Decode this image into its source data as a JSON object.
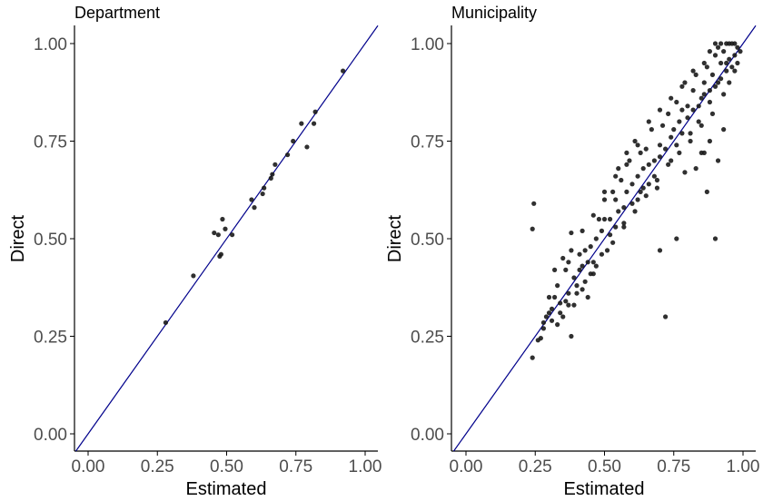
{
  "colors": {
    "point": "#1a1a1a",
    "identity_line": "#00008b",
    "axis": "#000000",
    "tick_text": "#4d4d4d"
  },
  "chart_data": [
    {
      "type": "scatter",
      "title": "Department",
      "xlabel": "Estimated",
      "ylabel": "Direct",
      "xlim": [
        0,
        1
      ],
      "ylim": [
        0,
        1
      ],
      "x_ticks": [
        "0.00",
        "0.25",
        "0.50",
        "0.75",
        "1.00"
      ],
      "y_ticks": [
        "0.00",
        "0.25",
        "0.50",
        "0.75",
        "1.00"
      ],
      "reference_line": "y = x",
      "grid": false,
      "points": [
        [
          0.28,
          0.285
        ],
        [
          0.38,
          0.405
        ],
        [
          0.455,
          0.515
        ],
        [
          0.47,
          0.51
        ],
        [
          0.475,
          0.455
        ],
        [
          0.48,
          0.46
        ],
        [
          0.485,
          0.55
        ],
        [
          0.495,
          0.525
        ],
        [
          0.52,
          0.51
        ],
        [
          0.59,
          0.6
        ],
        [
          0.6,
          0.58
        ],
        [
          0.63,
          0.615
        ],
        [
          0.635,
          0.63
        ],
        [
          0.66,
          0.655
        ],
        [
          0.665,
          0.665
        ],
        [
          0.675,
          0.69
        ],
        [
          0.72,
          0.715
        ],
        [
          0.74,
          0.75
        ],
        [
          0.77,
          0.795
        ],
        [
          0.79,
          0.735
        ],
        [
          0.815,
          0.795
        ],
        [
          0.82,
          0.825
        ],
        [
          0.92,
          0.93
        ]
      ]
    },
    {
      "type": "scatter",
      "title": "Municipality",
      "xlabel": "Estimated",
      "ylabel": "Direct",
      "xlim": [
        0,
        1
      ],
      "ylim": [
        0,
        1
      ],
      "x_ticks": [
        "0.00",
        "0.25",
        "0.50",
        "0.75",
        "1.00"
      ],
      "y_ticks": [
        "0.00",
        "0.25",
        "0.50",
        "0.75",
        "1.00"
      ],
      "reference_line": "y = x",
      "grid": false,
      "points": [
        [
          0.24,
          0.195
        ],
        [
          0.245,
          0.59
        ],
        [
          0.24,
          0.525
        ],
        [
          0.27,
          0.245
        ],
        [
          0.28,
          0.285
        ],
        [
          0.29,
          0.3
        ],
        [
          0.3,
          0.31
        ],
        [
          0.31,
          0.32
        ],
        [
          0.32,
          0.35
        ],
        [
          0.33,
          0.38
        ],
        [
          0.3,
          0.35
        ],
        [
          0.32,
          0.42
        ],
        [
          0.34,
          0.335
        ],
        [
          0.35,
          0.3
        ],
        [
          0.36,
          0.34
        ],
        [
          0.37,
          0.36
        ],
        [
          0.38,
          0.25
        ],
        [
          0.37,
          0.44
        ],
        [
          0.38,
          0.515
        ],
        [
          0.39,
          0.4
        ],
        [
          0.4,
          0.38
        ],
        [
          0.41,
          0.42
        ],
        [
          0.42,
          0.43
        ],
        [
          0.43,
          0.47
        ],
        [
          0.44,
          0.35
        ],
        [
          0.45,
          0.41
        ],
        [
          0.46,
          0.44
        ],
        [
          0.47,
          0.5
        ],
        [
          0.48,
          0.55
        ],
        [
          0.49,
          0.52
        ],
        [
          0.5,
          0.6
        ],
        [
          0.51,
          0.47
        ],
        [
          0.52,
          0.55
        ],
        [
          0.53,
          0.62
        ],
        [
          0.54,
          0.6
        ],
        [
          0.55,
          0.57
        ],
        [
          0.56,
          0.65
        ],
        [
          0.57,
          0.54
        ],
        [
          0.58,
          0.62
        ],
        [
          0.59,
          0.7
        ],
        [
          0.6,
          0.59
        ],
        [
          0.61,
          0.75
        ],
        [
          0.62,
          0.66
        ],
        [
          0.63,
          0.62
        ],
        [
          0.64,
          0.68
        ],
        [
          0.65,
          0.73
        ],
        [
          0.66,
          0.64
        ],
        [
          0.67,
          0.78
        ],
        [
          0.68,
          0.7
        ],
        [
          0.69,
          0.65
        ],
        [
          0.7,
          0.74
        ],
        [
          0.71,
          0.79
        ],
        [
          0.72,
          0.3
        ],
        [
          0.73,
          0.82
        ],
        [
          0.74,
          0.7
        ],
        [
          0.75,
          0.78
        ],
        [
          0.76,
          0.85
        ],
        [
          0.77,
          0.8
        ],
        [
          0.78,
          0.83
        ],
        [
          0.79,
          0.9
        ],
        [
          0.8,
          0.84
        ],
        [
          0.81,
          0.75
        ],
        [
          0.82,
          0.88
        ],
        [
          0.83,
          0.92
        ],
        [
          0.84,
          0.8
        ],
        [
          0.85,
          0.86
        ],
        [
          0.86,
          0.9
        ],
        [
          0.87,
          0.94
        ],
        [
          0.88,
          0.88
        ],
        [
          0.89,
          0.92
        ],
        [
          0.9,
          0.97
        ],
        [
          0.91,
          0.9
        ],
        [
          0.92,
          0.95
        ],
        [
          0.93,
          0.98
        ],
        [
          0.94,
          0.93
        ],
        [
          0.95,
          0.96
        ],
        [
          0.96,
          1.0
        ],
        [
          0.97,
          0.97
        ],
        [
          0.98,
          0.99
        ],
        [
          0.9,
          1.0
        ],
        [
          0.92,
          1.0
        ],
        [
          0.95,
          1.0
        ],
        [
          0.85,
          0.72
        ],
        [
          0.88,
          0.75
        ],
        [
          0.91,
          0.7
        ],
        [
          0.93,
          0.78
        ],
        [
          0.87,
          0.62
        ],
        [
          0.9,
          0.5
        ],
        [
          0.76,
          0.5
        ],
        [
          0.7,
          0.47
        ],
        [
          0.79,
          0.67
        ],
        [
          0.83,
          0.68
        ],
        [
          0.86,
          0.72
        ],
        [
          0.63,
          0.72
        ],
        [
          0.55,
          0.68
        ],
        [
          0.58,
          0.72
        ],
        [
          0.5,
          0.55
        ],
        [
          0.45,
          0.48
        ],
        [
          0.42,
          0.37
        ],
        [
          0.36,
          0.42
        ],
        [
          0.33,
          0.28
        ],
        [
          0.39,
          0.33
        ],
        [
          0.41,
          0.46
        ],
        [
          0.44,
          0.44
        ],
        [
          0.47,
          0.43
        ],
        [
          0.52,
          0.51
        ],
        [
          0.54,
          0.53
        ],
        [
          0.57,
          0.58
        ],
        [
          0.6,
          0.64
        ],
        [
          0.62,
          0.6
        ],
        [
          0.64,
          0.63
        ],
        [
          0.66,
          0.69
        ],
        [
          0.68,
          0.66
        ],
        [
          0.7,
          0.71
        ],
        [
          0.72,
          0.73
        ],
        [
          0.74,
          0.76
        ],
        [
          0.76,
          0.74
        ],
        [
          0.78,
          0.77
        ],
        [
          0.8,
          0.81
        ],
        [
          0.82,
          0.83
        ],
        [
          0.84,
          0.84
        ],
        [
          0.86,
          0.87
        ],
        [
          0.88,
          0.85
        ],
        [
          0.9,
          0.89
        ],
        [
          0.92,
          0.91
        ],
        [
          0.94,
          0.95
        ],
        [
          0.96,
          0.94
        ],
        [
          0.97,
          0.93
        ],
        [
          0.95,
          0.9
        ],
        [
          0.93,
          0.87
        ],
        [
          0.89,
          0.82
        ],
        [
          0.85,
          0.79
        ],
        [
          0.81,
          0.77
        ],
        [
          0.77,
          0.72
        ],
        [
          0.73,
          0.69
        ],
        [
          0.69,
          0.63
        ],
        [
          0.65,
          0.61
        ],
        [
          0.61,
          0.57
        ],
        [
          0.57,
          0.53
        ],
        [
          0.53,
          0.49
        ],
        [
          0.49,
          0.46
        ],
        [
          0.46,
          0.41
        ],
        [
          0.43,
          0.39
        ],
        [
          0.4,
          0.36
        ],
        [
          0.37,
          0.33
        ],
        [
          0.34,
          0.31
        ],
        [
          0.31,
          0.29
        ],
        [
          0.28,
          0.27
        ],
        [
          0.26,
          0.24
        ],
        [
          0.35,
          0.45
        ],
        [
          0.38,
          0.47
        ],
        [
          0.42,
          0.52
        ],
        [
          0.46,
          0.56
        ],
        [
          0.5,
          0.62
        ],
        [
          0.54,
          0.66
        ],
        [
          0.58,
          0.69
        ],
        [
          0.62,
          0.74
        ],
        [
          0.66,
          0.8
        ],
        [
          0.7,
          0.83
        ],
        [
          0.74,
          0.86
        ],
        [
          0.78,
          0.89
        ],
        [
          0.82,
          0.93
        ],
        [
          0.86,
          0.95
        ],
        [
          0.88,
          0.98
        ],
        [
          0.91,
          0.99
        ],
        [
          0.94,
          1.0
        ],
        [
          0.97,
          1.0
        ],
        [
          0.99,
          0.98
        ],
        [
          0.98,
          0.95
        ]
      ]
    }
  ]
}
